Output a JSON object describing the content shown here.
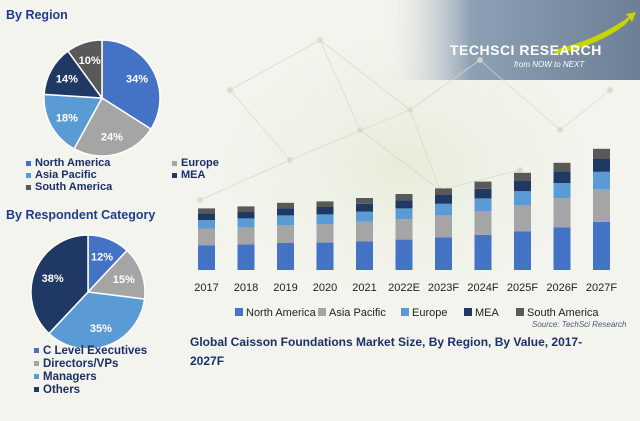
{
  "logo": {
    "brand": "TECHSCI RESEARCH",
    "tagline": "from NOW to NEXT"
  },
  "region_section": {
    "title": "By Region"
  },
  "respondent_section": {
    "title": "By Respondent Category"
  },
  "caption": "Global Caisson Foundations Market Size, By Region, By Value, 2017-2027F",
  "source": "Source: TechSci Research",
  "colors": {
    "north_america": "#4472c4",
    "asia_pacific": "#a5a5a5",
    "europe": "#5b9bd5",
    "mea": "#203864",
    "south_america": "#595959",
    "c_level": "#4472c4",
    "directors": "#a5a5a5",
    "managers": "#5b9bd5",
    "others": "#203864"
  },
  "chart_data": [
    {
      "type": "pie",
      "title": "By Region",
      "slices": [
        {
          "label": "North America",
          "value": 34,
          "display": "34%",
          "color": "#4472c4"
        },
        {
          "label": "Europe",
          "value": 24,
          "display": "24%",
          "color": "#a5a5a5"
        },
        {
          "label": "Asia Pacific",
          "value": 18,
          "display": "18%",
          "color": "#5b9bd5"
        },
        {
          "label": "MEA",
          "value": 14,
          "display": "14%",
          "color": "#203864"
        },
        {
          "label": "South America",
          "value": 10,
          "display": "10%",
          "color": "#595959"
        }
      ],
      "legend": [
        "North America",
        "Europe",
        "Asia Pacific",
        "MEA",
        "South America"
      ]
    },
    {
      "type": "pie",
      "title": "By Respondent Category",
      "slices": [
        {
          "label": "C Level Executives",
          "value": 12,
          "display": "12%",
          "color": "#4472c4"
        },
        {
          "label": "Directors/VPs",
          "value": 15,
          "display": "15%",
          "color": "#a5a5a5"
        },
        {
          "label": "Managers",
          "value": 35,
          "display": "35%",
          "color": "#5b9bd5"
        },
        {
          "label": "Others",
          "value": 38,
          "display": "38%",
          "color": "#203864"
        }
      ],
      "legend": [
        "C Level Executives",
        "Directors/VPs",
        "Managers",
        "Others"
      ]
    },
    {
      "type": "bar",
      "stacked": true,
      "title": "Global Caisson Foundations Market Size, By Region, By Value, 2017-2027F",
      "categories": [
        "2017",
        "2018",
        "2019",
        "2020",
        "2021",
        "2022E",
        "2023F",
        "2024F",
        "2025F",
        "2026F",
        "2027F"
      ],
      "series": [
        {
          "name": "North America",
          "color": "#4472c4",
          "values": [
            12.4,
            12.8,
            13.5,
            13.7,
            14.4,
            15.2,
            16.3,
            17.6,
            19.4,
            21.4,
            24.1
          ]
        },
        {
          "name": "Asia Pacific",
          "color": "#a5a5a5",
          "values": [
            8.2,
            8.5,
            9.0,
            9.2,
            9.7,
            10.2,
            11.0,
            11.9,
            13.1,
            14.5,
            16.4
          ]
        },
        {
          "name": "Europe",
          "color": "#5b9bd5",
          "values": [
            4.4,
            4.5,
            4.8,
            4.9,
            5.1,
            5.4,
            5.8,
            6.3,
            6.9,
            7.6,
            8.6
          ]
        },
        {
          "name": "MEA",
          "color": "#203864",
          "values": [
            3.3,
            3.4,
            3.6,
            3.7,
            3.9,
            4.1,
            4.4,
            4.8,
            5.3,
            5.8,
            6.6
          ]
        },
        {
          "name": "South America",
          "color": "#595959",
          "values": [
            2.5,
            2.6,
            2.7,
            2.8,
            2.9,
            3.1,
            3.3,
            3.6,
            3.9,
            4.3,
            4.9
          ]
        }
      ],
      "grid": false,
      "legend_position": "bottom"
    }
  ]
}
